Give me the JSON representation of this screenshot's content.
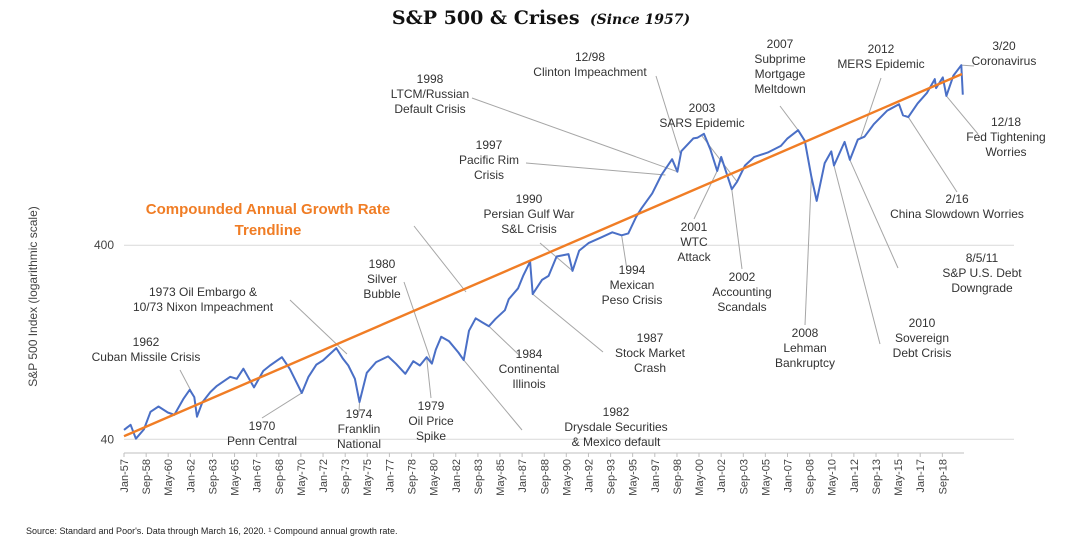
{
  "colors": {
    "index_line": "#4a6fc6",
    "trendline": "#f07d25",
    "grid": "#d9d9d9",
    "leader": "#a6a6a6",
    "text": "#333333"
  },
  "chart_data": {
    "type": "line",
    "title": "S&P 500 & Crises",
    "subtitle": "(Since 1957)",
    "xlabel": "",
    "ylabel": "S&P 500 Index (logarithmic scale)",
    "y_scale": "log",
    "ylim": [
      34,
      3600
    ],
    "xlim": [
      1957.0,
      2020.3
    ],
    "y_tick_labels": [
      {
        "value": 40,
        "label": "40"
      },
      {
        "value": 400,
        "label": "400"
      }
    ],
    "x_tick_labels": [
      {
        "t": 1957.0,
        "label": "Jan-57"
      },
      {
        "t": 1958.67,
        "label": "Sep-58"
      },
      {
        "t": 1960.33,
        "label": "May-60"
      },
      {
        "t": 1962.0,
        "label": "Jan-62"
      },
      {
        "t": 1963.67,
        "label": "Sep-63"
      },
      {
        "t": 1965.33,
        "label": "May-65"
      },
      {
        "t": 1967.0,
        "label": "Jan-67"
      },
      {
        "t": 1968.67,
        "label": "Sep-68"
      },
      {
        "t": 1970.33,
        "label": "May-70"
      },
      {
        "t": 1972.0,
        "label": "Jan-72"
      },
      {
        "t": 1973.67,
        "label": "Sep-73"
      },
      {
        "t": 1975.33,
        "label": "May-75"
      },
      {
        "t": 1977.0,
        "label": "Jan-77"
      },
      {
        "t": 1978.67,
        "label": "Sep-78"
      },
      {
        "t": 1980.33,
        "label": "May-80"
      },
      {
        "t": 1982.0,
        "label": "Jan-82"
      },
      {
        "t": 1983.67,
        "label": "Sep-83"
      },
      {
        "t": 1985.33,
        "label": "May-85"
      },
      {
        "t": 1987.0,
        "label": "Jan-87"
      },
      {
        "t": 1988.67,
        "label": "Sep-88"
      },
      {
        "t": 1990.33,
        "label": "May-90"
      },
      {
        "t": 1992.0,
        "label": "Jan-92"
      },
      {
        "t": 1993.67,
        "label": "Sep-93"
      },
      {
        "t": 1995.33,
        "label": "May-95"
      },
      {
        "t": 1997.0,
        "label": "Jan-97"
      },
      {
        "t": 1998.67,
        "label": "Sep-98"
      },
      {
        "t": 2000.33,
        "label": "May-00"
      },
      {
        "t": 2002.0,
        "label": "Jan-02"
      },
      {
        "t": 2003.67,
        "label": "Sep-03"
      },
      {
        "t": 2005.33,
        "label": "May-05"
      },
      {
        "t": 2007.0,
        "label": "Jan-07"
      },
      {
        "t": 2008.67,
        "label": "Sep-08"
      },
      {
        "t": 2010.33,
        "label": "May-10"
      },
      {
        "t": 2012.0,
        "label": "Jan-12"
      },
      {
        "t": 2013.67,
        "label": "Sep-13"
      },
      {
        "t": 2015.33,
        "label": "May-15"
      },
      {
        "t": 2017.0,
        "label": "Jan-17"
      },
      {
        "t": 2018.67,
        "label": "Sep-18"
      }
    ],
    "series": [
      {
        "name": "",
        "kind": "index",
        "points": [
          [
            1957.0,
            44.7
          ],
          [
            1957.5,
            47.5
          ],
          [
            1957.9,
            40.3
          ],
          [
            1958.5,
            45
          ],
          [
            1959.0,
            55.4
          ],
          [
            1959.6,
            59
          ],
          [
            1960.3,
            55
          ],
          [
            1960.8,
            53.5
          ],
          [
            1961.5,
            65
          ],
          [
            1961.95,
            72
          ],
          [
            1962.3,
            66
          ],
          [
            1962.5,
            52.3
          ],
          [
            1962.9,
            62
          ],
          [
            1963.5,
            70
          ],
          [
            1964.0,
            75.4
          ],
          [
            1965.0,
            84
          ],
          [
            1965.5,
            82
          ],
          [
            1966.0,
            92.4
          ],
          [
            1966.8,
            74
          ],
          [
            1967.5,
            90
          ],
          [
            1968.0,
            96
          ],
          [
            1968.9,
            106
          ],
          [
            1969.5,
            92
          ],
          [
            1970.4,
            69.3
          ],
          [
            1970.9,
            84
          ],
          [
            1971.5,
            97
          ],
          [
            1972.0,
            102
          ],
          [
            1973.0,
            118
          ],
          [
            1973.5,
            104
          ],
          [
            1973.9,
            96
          ],
          [
            1974.4,
            82
          ],
          [
            1974.75,
            62.3
          ],
          [
            1975.3,
            88
          ],
          [
            1976.0,
            100
          ],
          [
            1976.9,
            107
          ],
          [
            1977.5,
            98
          ],
          [
            1978.2,
            87
          ],
          [
            1978.8,
            101
          ],
          [
            1979.3,
            96
          ],
          [
            1979.8,
            106
          ],
          [
            1980.2,
            98.2
          ],
          [
            1980.5,
            116
          ],
          [
            1980.9,
            135
          ],
          [
            1981.5,
            128
          ],
          [
            1982.2,
            112
          ],
          [
            1982.6,
            102.4
          ],
          [
            1983.0,
            145
          ],
          [
            1983.5,
            168
          ],
          [
            1984.0,
            160
          ],
          [
            1984.5,
            153
          ],
          [
            1985.0,
            167
          ],
          [
            1985.7,
            185
          ],
          [
            1986.0,
            211
          ],
          [
            1986.7,
            240
          ],
          [
            1987.1,
            280
          ],
          [
            1987.6,
            329
          ],
          [
            1987.8,
            224
          ],
          [
            1988.5,
            265
          ],
          [
            1989.0,
            278
          ],
          [
            1989.6,
            350
          ],
          [
            1990.5,
            360
          ],
          [
            1990.8,
            295
          ],
          [
            1991.3,
            375
          ],
          [
            1992.0,
            410
          ],
          [
            1993.0,
            440
          ],
          [
            1993.8,
            466
          ],
          [
            1994.5,
            450
          ],
          [
            1995.0,
            460
          ],
          [
            1995.6,
            560
          ],
          [
            1996.0,
            620
          ],
          [
            1996.8,
            740
          ],
          [
            1997.5,
            920
          ],
          [
            1998.3,
            1110
          ],
          [
            1998.7,
            957
          ],
          [
            1999.0,
            1220
          ],
          [
            1999.9,
            1420
          ],
          [
            2000.2,
            1430
          ],
          [
            2000.7,
            1500
          ],
          [
            2001.2,
            1240
          ],
          [
            2001.7,
            965
          ],
          [
            2002.0,
            1140
          ],
          [
            2002.8,
            777
          ],
          [
            2003.2,
            850
          ],
          [
            2003.8,
            1030
          ],
          [
            2004.5,
            1140
          ],
          [
            2005.5,
            1200
          ],
          [
            2006.5,
            1300
          ],
          [
            2007.0,
            1420
          ],
          [
            2007.8,
            1565
          ],
          [
            2008.3,
            1380
          ],
          [
            2008.8,
            900
          ],
          [
            2009.2,
            677
          ],
          [
            2009.8,
            1060
          ],
          [
            2010.3,
            1217
          ],
          [
            2010.5,
            1030
          ],
          [
            2011.3,
            1363
          ],
          [
            2011.7,
            1100
          ],
          [
            2012.3,
            1400
          ],
          [
            2012.8,
            1450
          ],
          [
            2013.5,
            1680
          ],
          [
            2014.5,
            1970
          ],
          [
            2015.4,
            2130
          ],
          [
            2015.7,
            1867
          ],
          [
            2016.1,
            1829
          ],
          [
            2016.8,
            2150
          ],
          [
            2017.5,
            2430
          ],
          [
            2018.1,
            2870
          ],
          [
            2018.2,
            2580
          ],
          [
            2018.7,
            2930
          ],
          [
            2018.97,
            2351
          ],
          [
            2019.5,
            2990
          ],
          [
            2020.1,
            3386
          ],
          [
            2020.21,
            2386
          ]
        ]
      },
      {
        "name": "",
        "kind": "trend",
        "points": [
          [
            1957.0,
            41.5
          ],
          [
            2020.15,
            3050
          ]
        ]
      }
    ],
    "annotations": {
      "trend_label": [
        "Compounded Annual Growth Rate",
        "Trendline"
      ],
      "events": [
        {
          "lines": [
            "1962",
            "Cuban Missile Crisis"
          ],
          "t": 1962.3,
          "v": 66
        },
        {
          "lines": [
            "1970",
            "Penn Central"
          ],
          "t": 1970.4,
          "v": 69.3
        },
        {
          "lines": [
            "1973 Oil Embargo &",
            "10/73 Nixon Impeachment"
          ],
          "t": 1973.8,
          "v": 110
        },
        {
          "lines": [
            "1974",
            "Franklin",
            "National"
          ],
          "t": 1974.75,
          "v": 62.3
        },
        {
          "lines": [
            "1979",
            "Oil Price",
            "Spike"
          ],
          "t": 1979.8,
          "v": 106
        },
        {
          "lines": [
            "1980",
            "Silver",
            "Bubble"
          ],
          "t": 1980.2,
          "v": 98.2
        },
        {
          "lines": [
            "1982",
            "Drysdale Securities",
            "& Mexico default"
          ],
          "t": 1982.6,
          "v": 102.4
        },
        {
          "lines": [
            "1984",
            "Continental",
            "Illinois"
          ],
          "t": 1984.5,
          "v": 153
        },
        {
          "lines": [
            "1987",
            "Stock Market",
            "Crash"
          ],
          "t": 1987.8,
          "v": 224
        },
        {
          "lines": [
            "1990",
            "Persian Gulf War",
            "S&L Crisis"
          ],
          "t": 1990.8,
          "v": 295
        },
        {
          "lines": [
            "1994",
            "Mexican",
            "Peso Crisis"
          ],
          "t": 1994.5,
          "v": 450
        },
        {
          "lines": [
            "1997",
            "Pacific Rim",
            "Crisis"
          ],
          "t": 1997.8,
          "v": 920
        },
        {
          "lines": [
            "1998",
            "LTCM/Russian",
            "Default Crisis"
          ],
          "t": 1998.7,
          "v": 957
        },
        {
          "lines": [
            "12/98",
            "Clinton Impeachment"
          ],
          "t": 1998.9,
          "v": 1190
        },
        {
          "lines": [
            "2001",
            "WTC",
            "Attack"
          ],
          "t": 2001.7,
          "v": 965
        },
        {
          "lines": [
            "2002",
            "Accounting",
            "Scandals"
          ],
          "t": 2002.8,
          "v": 777
        },
        {
          "lines": [
            "2003",
            "SARS Epidemic"
          ],
          "t": 2003.2,
          "v": 850
        },
        {
          "lines": [
            "2007",
            "Subprime",
            "Mortgage",
            "Meltdown"
          ],
          "t": 2007.8,
          "v": 1565
        },
        {
          "lines": [
            "2008",
            "Lehman",
            "Bankruptcy"
          ],
          "t": 2008.8,
          "v": 900
        },
        {
          "lines": [
            "2010",
            "Sovereign",
            "Debt Crisis"
          ],
          "t": 2010.5,
          "v": 1030
        },
        {
          "lines": [
            "8/5/11",
            "S&P U.S. Debt",
            "Downgrade"
          ],
          "t": 2011.7,
          "v": 1100
        },
        {
          "lines": [
            "2012",
            "MERS Epidemic"
          ],
          "t": 2012.5,
          "v": 1420
        },
        {
          "lines": [
            "2/16",
            "China Slowdown Worries"
          ],
          "t": 2016.1,
          "v": 1829
        },
        {
          "lines": [
            "12/18",
            "Fed Tightening",
            "Worries"
          ],
          "t": 2018.97,
          "v": 2351
        },
        {
          "lines": [
            "3/20",
            "Coronavirus"
          ],
          "t": 2020.1,
          "v": 3386
        }
      ]
    },
    "grid": "horizontal",
    "legend": "none"
  },
  "footer": {
    "source": "Source: Standard and Poor's. Data through March 16, 2020. ¹ Compound annual growth rate."
  }
}
